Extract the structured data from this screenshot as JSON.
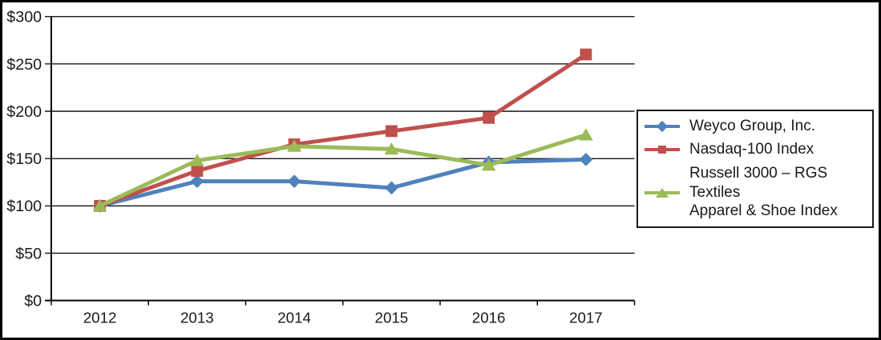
{
  "chart_data": {
    "type": "line",
    "title": "",
    "xlabel": "",
    "ylabel": "",
    "x_labels": [
      "2012",
      "2013",
      "2014",
      "2015",
      "2016",
      "2017"
    ],
    "y_ticks": [
      0,
      50,
      100,
      150,
      200,
      250,
      300
    ],
    "y_tick_labels": [
      "$0",
      "$50",
      "$100",
      "$150",
      "$200",
      "$250",
      "$300"
    ],
    "ylim": [
      0,
      300
    ],
    "grid": "horizontal",
    "legend_position": "right",
    "series": [
      {
        "name": "Weyco Group, Inc.",
        "marker": "diamond",
        "color": "#4F81BD",
        "values": [
          100,
          126,
          126,
          119,
          146,
          149
        ]
      },
      {
        "name": "Nasdaq-100 Index",
        "marker": "square",
        "color": "#C0504D",
        "values": [
          100,
          137,
          165,
          179,
          193,
          260
        ]
      },
      {
        "name": "Russell 3000 – RGS Textiles Apparel & Shoe Index",
        "marker": "triangle",
        "color": "#9BBB59",
        "values": [
          100,
          148,
          163,
          160,
          143,
          175
        ]
      }
    ]
  },
  "legend": {
    "items": [
      {
        "lines": [
          "Weyco Group, Inc."
        ]
      },
      {
        "lines": [
          "Nasdaq-100 Index"
        ]
      },
      {
        "lines": [
          "Russell 3000 – RGS Textiles",
          "Apparel & Shoe Index"
        ]
      }
    ]
  },
  "colors": {
    "axis": "#000000",
    "text": "#1a1a1a",
    "background": "#ffffff"
  }
}
